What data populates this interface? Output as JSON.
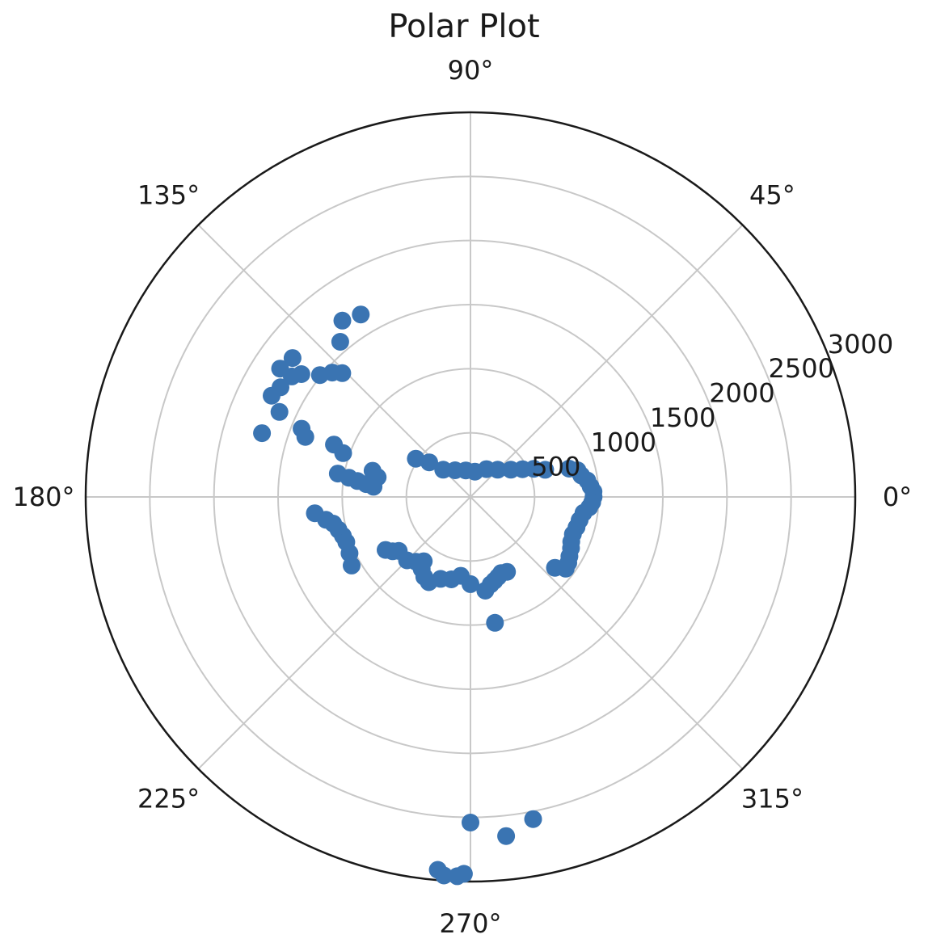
{
  "chart_data": {
    "type": "scatter",
    "projection": "polar",
    "title": "Polar Plot",
    "angle_unit": "degrees",
    "r_max": 3000,
    "grid": true,
    "angle_tick_labels": [
      "0°",
      "45°",
      "90°",
      "135°",
      "180°",
      "225°",
      "270°",
      "315°"
    ],
    "radial_tick_labels": [
      "500",
      "1000",
      "1500",
      "2000",
      "2500",
      "3000"
    ],
    "radial_tick_values": [
      500,
      1000,
      1500,
      2000,
      2500,
      3000
    ],
    "marker_color": "#3a74b2",
    "series": [
      {
        "points": [
          [
            0.0,
            960
          ],
          [
            2.5,
            960
          ],
          [
            5.0,
            940
          ],
          [
            8.0,
            920
          ],
          [
            11.0,
            880
          ],
          [
            14.0,
            860
          ],
          [
            16.0,
            800
          ],
          [
            -2.5,
            950
          ],
          [
            -5.0,
            930
          ],
          [
            -8.0,
            890
          ],
          [
            -12.0,
            870
          ],
          [
            -16.0,
            860
          ],
          [
            -20.0,
            850
          ],
          [
            -24.0,
            860
          ],
          [
            -27.0,
            880
          ],
          [
            -31.0,
            900
          ],
          [
            -34.0,
            920
          ],
          [
            -37.0,
            930
          ],
          [
            -40.0,
            860
          ],
          [
            20.0,
            620
          ],
          [
            24.0,
            540
          ],
          [
            28.0,
            460
          ],
          [
            34.0,
            380
          ],
          [
            45.0,
            300
          ],
          [
            60.0,
            250
          ],
          [
            80.0,
            200
          ],
          [
            100.0,
            210
          ],
          [
            120.0,
            240
          ],
          [
            135.0,
            300
          ],
          [
            140.0,
            420
          ],
          [
            145.0,
            520
          ],
          [
            136.0,
            1390
          ],
          [
            138.0,
            1450
          ],
          [
            141.0,
            1510
          ],
          [
            144.0,
            1630
          ],
          [
            146.0,
            1680
          ],
          [
            150.0,
            1710
          ],
          [
            153.0,
            1740
          ],
          [
            156.0,
            1630
          ],
          [
            158.0,
            1420
          ],
          [
            160.0,
            1370
          ],
          [
            163.0,
            1700
          ],
          [
            146.0,
            1790
          ],
          [
            142.0,
            1760
          ],
          [
            130.0,
            1580
          ],
          [
            126.0,
            1700
          ],
          [
            121.0,
            1660
          ],
          [
            159.0,
            1140
          ],
          [
            161.0,
            1050
          ],
          [
            170.0,
            1050
          ],
          [
            171.0,
            960
          ],
          [
            172.0,
            890
          ],
          [
            173.0,
            820
          ],
          [
            174.0,
            760
          ],
          [
            168.0,
            740
          ],
          [
            165.0,
            790
          ],
          [
            186.0,
            1220
          ],
          [
            189.0,
            1140
          ],
          [
            191.0,
            1090
          ],
          [
            194.0,
            1060
          ],
          [
            197.0,
            1040
          ],
          [
            200.0,
            1030
          ],
          [
            205.0,
            1040
          ],
          [
            210.0,
            1070
          ],
          [
            212.0,
            780
          ],
          [
            215.0,
            740
          ],
          [
            217.0,
            700
          ],
          [
            225.0,
            700
          ],
          [
            230.0,
            660
          ],
          [
            234.0,
            620
          ],
          [
            236.0,
            680
          ],
          [
            240.0,
            720
          ],
          [
            244.0,
            740
          ],
          [
            250.0,
            680
          ],
          [
            257.0,
            660
          ],
          [
            263.0,
            620
          ],
          [
            270.0,
            680
          ],
          [
            279.0,
            740
          ],
          [
            283.0,
            700
          ],
          [
            286.0,
            680
          ],
          [
            289.0,
            660
          ],
          [
            292.0,
            640
          ],
          [
            296.0,
            650
          ],
          [
            281.0,
            1000
          ],
          [
            270.0,
            2540
          ],
          [
            269.0,
            2940
          ],
          [
            268.0,
            2960
          ],
          [
            266.0,
            2960
          ],
          [
            265.0,
            2920
          ],
          [
            276.0,
            2660
          ],
          [
            281.0,
            2560
          ]
        ]
      }
    ]
  }
}
